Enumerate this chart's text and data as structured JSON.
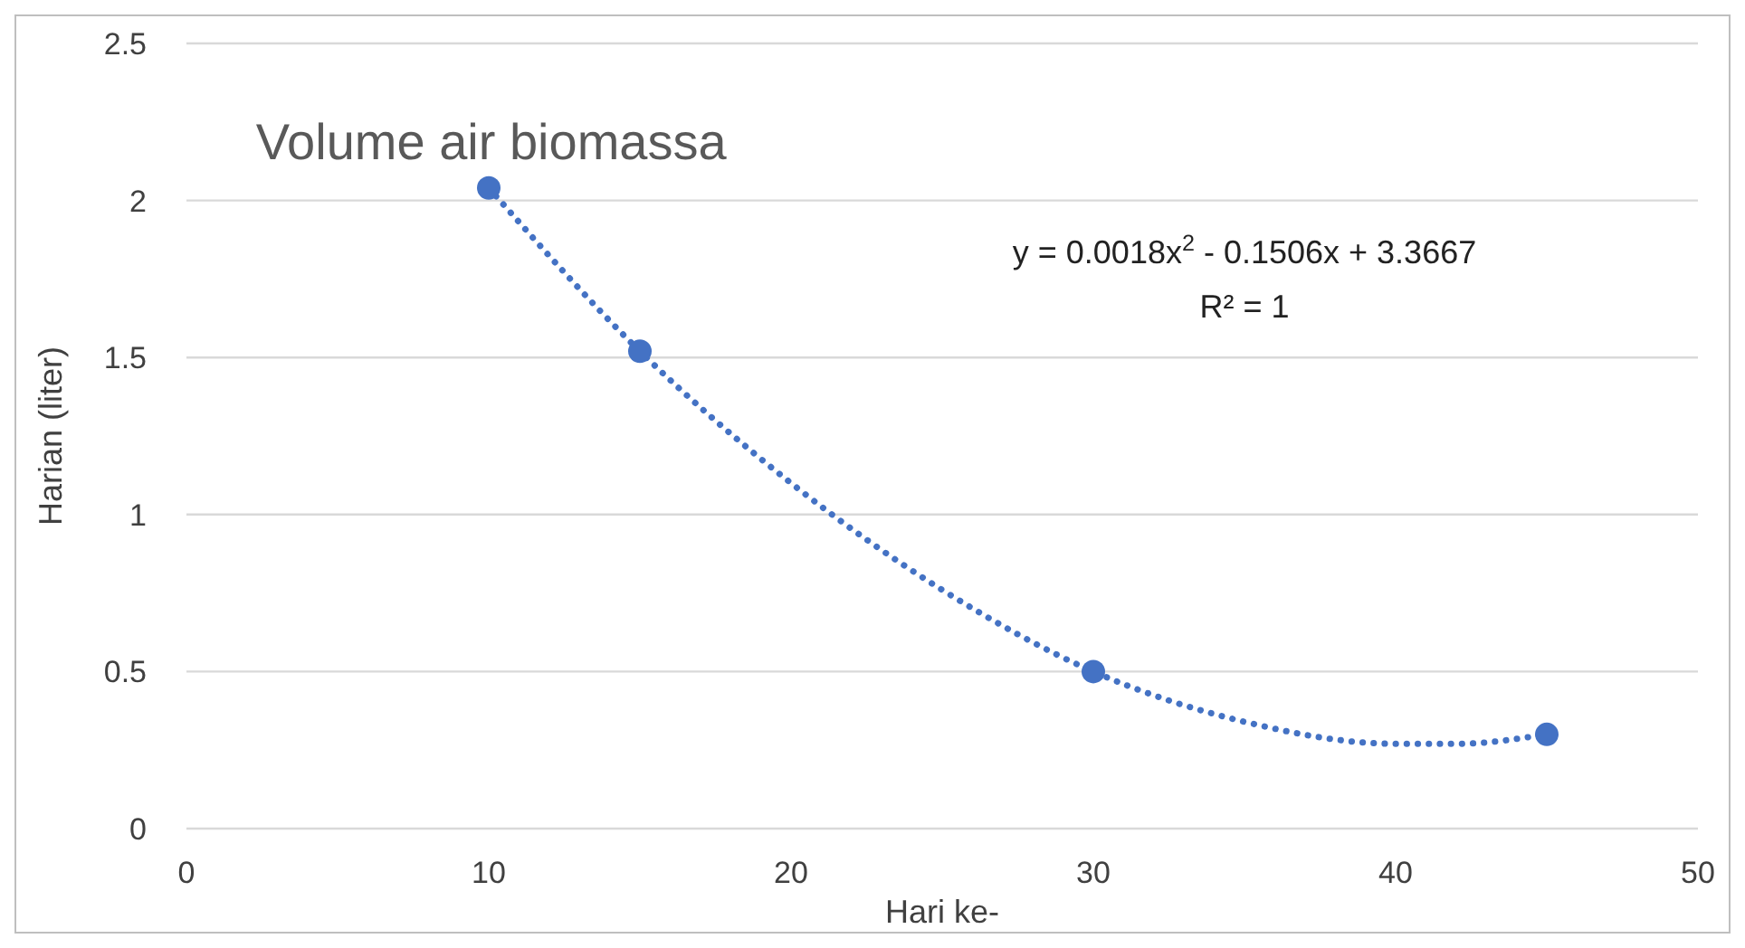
{
  "chart_data": {
    "type": "scatter",
    "title": "Volume air biomassa",
    "xlabel": "Hari ke-",
    "ylabel": "Harian (liter)",
    "annotations": [
      "y = 0.0018x$^{2}$ - 0.1506x + 3.3667",
      "R² = 1"
    ],
    "xlim": [
      0,
      50
    ],
    "xticks": [
      0,
      10,
      20,
      30,
      40,
      50
    ],
    "ylim": [
      0,
      2.5
    ],
    "yticks": [
      0,
      0.5,
      1,
      1.5,
      2,
      2.5
    ],
    "grid": "y",
    "series": [
      {
        "type": "line",
        "color": "#4472c4",
        "line_style": "dotted",
        "x": [
          10,
          15,
          20,
          25,
          30,
          35,
          40,
          42,
          45
        ],
        "values": [
          2.04,
          1.52,
          1.1,
          0.76,
          0.5,
          0.34,
          0.27,
          0.27,
          0.3
        ]
      },
      {
        "color": "#4472c4",
        "marker": "circle",
        "x": [
          10,
          15,
          30,
          45
        ],
        "values": [
          2.04,
          1.52,
          0.5,
          0.3
        ]
      }
    ]
  }
}
